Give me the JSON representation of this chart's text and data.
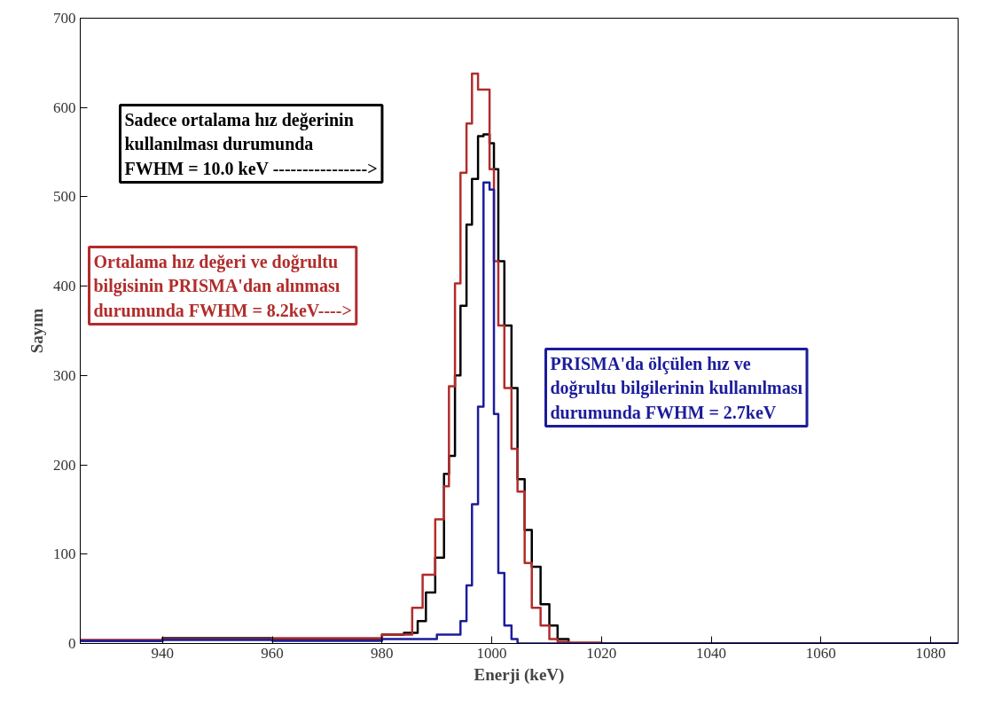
{
  "chart_data": {
    "type": "step",
    "xlabel": "Enerji (keV)",
    "ylabel": "Sayım",
    "xlim": [
      925,
      1085
    ],
    "ylim": [
      0,
      700
    ],
    "xticks": [
      940,
      960,
      980,
      1000,
      1020,
      1040,
      1060,
      1080
    ],
    "yticks": [
      0,
      100,
      200,
      300,
      400,
      500,
      600,
      700
    ],
    "grid": false,
    "series": [
      {
        "color": "#000000",
        "x": [
          925,
          940,
          960,
          980,
          984,
          986.5,
          988,
          989.7,
          991.3,
          992.2,
          993.3,
          994.3,
          995.4,
          996.4,
          997.5,
          998.5,
          999.6,
          1000.4,
          1001.2,
          1002.3,
          1003.6,
          1004.7,
          1006,
          1007.3,
          1008.9,
          1010.5,
          1012,
          1014,
          1085
        ],
        "values": [
          3,
          6,
          5,
          10,
          12,
          25,
          57,
          96,
          190,
          210,
          300,
          378,
          469,
          520,
          568,
          570,
          560,
          531,
          428,
          356,
          286,
          184,
          127,
          86,
          44,
          20,
          5,
          0,
          0
        ]
      },
      {
        "color": "#b22c2c",
        "x": [
          925,
          940,
          960,
          980,
          985.5,
          987.4,
          989.7,
          991.3,
          992.2,
          993.3,
          994.3,
          995.4,
          996.4,
          997.5,
          999.6,
          1000.4,
          1001.2,
          1002.3,
          1003.6,
          1004.7,
          1006,
          1007.3,
          1008.9,
          1010.5,
          1012,
          1014,
          1020,
          1085
        ],
        "values": [
          4,
          5,
          6,
          10,
          40,
          77,
          139,
          176,
          288,
          403,
          527,
          582,
          638,
          620,
          531,
          428,
          356,
          286,
          218,
          170,
          90,
          40,
          20,
          5,
          2,
          1,
          0,
          0
        ]
      },
      {
        "color": "#1c1c9c",
        "x": [
          925,
          940,
          960,
          980,
          990,
          992.2,
          994.3,
          995.4,
          996.4,
          997.5,
          998.5,
          999.6,
          1000.4,
          1001.2,
          1002.3,
          1003.6,
          1004.7,
          1085
        ],
        "values": [
          3,
          4,
          3,
          5,
          10,
          10,
          25,
          65,
          156,
          265,
          516,
          508,
          257,
          79,
          20,
          5,
          0,
          0
        ]
      }
    ],
    "annotations": [
      "Sadece ortalama hız değerinin\nkullanılması durumunda\nFWHM = 10.0 keV ---------------->",
      "Ortalama hız değeri ve doğrultu\nbilgisinin PRISMA'dan alınması\ndurumunda FWHM = 8.2keV---->",
      "PRISMA'da ölçülen hız ve\ndoğrultu bilgilerinin kullanılması\ndurumunda FWHM = 2.7keV"
    ]
  }
}
